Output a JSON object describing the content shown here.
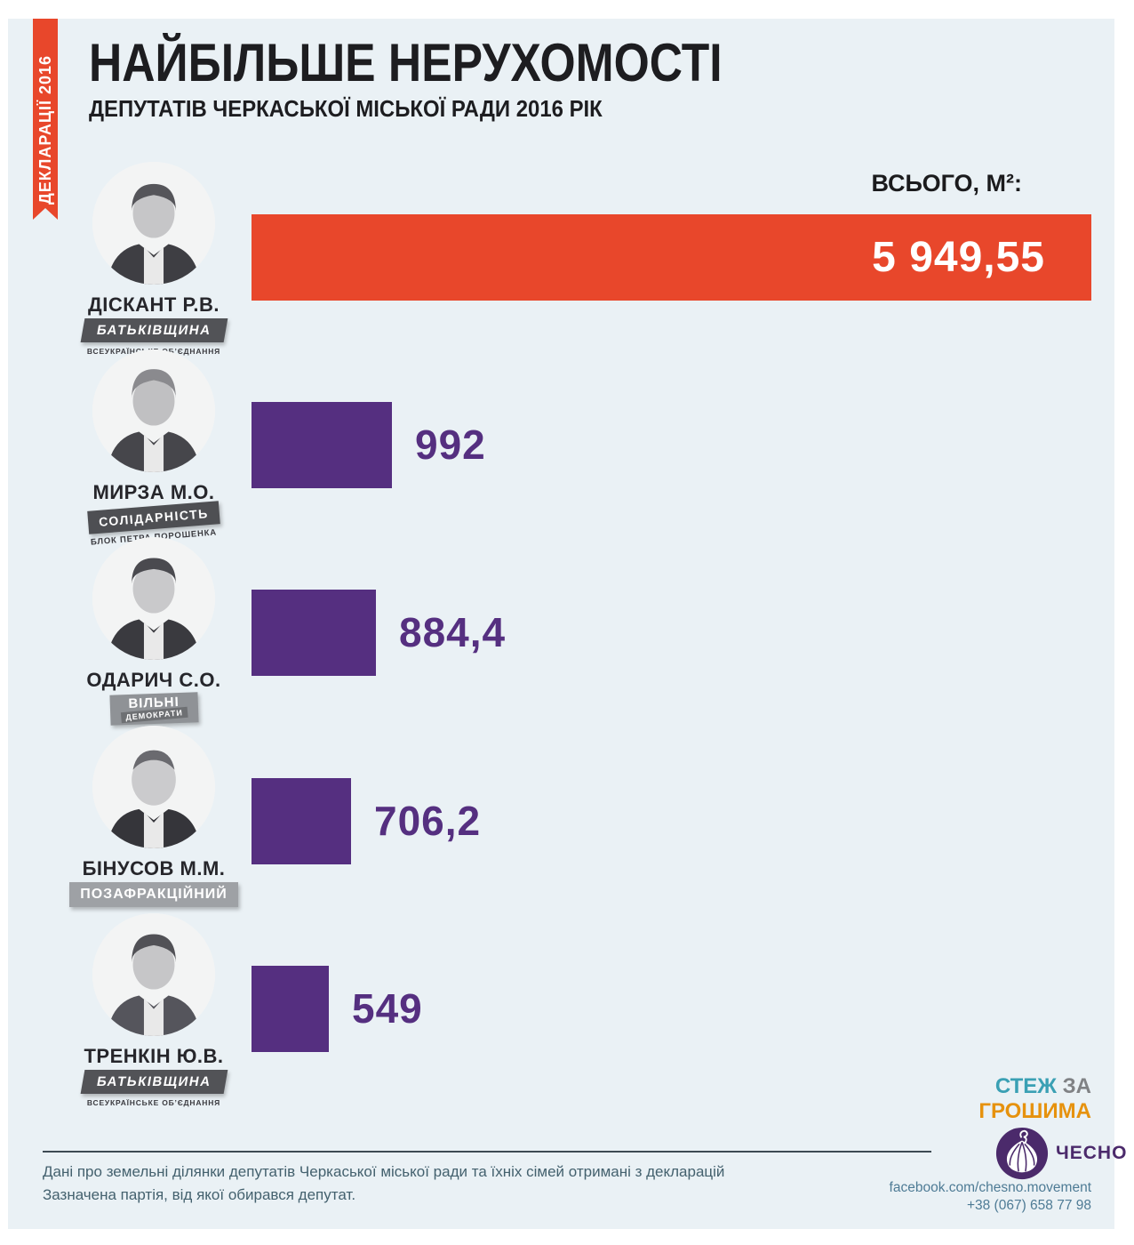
{
  "ribbon": {
    "label": "ДЕКЛАРАЦІЇ 2016"
  },
  "header": {
    "title": "НАЙБІЛЬШЕ НЕРУХОМОСТІ",
    "subtitle": "ДЕПУТАТІВ ЧЕРКАСЬКОЇ МІСЬКОЇ РАДИ 2016 РІК"
  },
  "total_label": "ВСЬОГО, М²:",
  "chart_data": {
    "type": "bar",
    "orientation": "horizontal",
    "title": "НАЙБІЛЬШЕ НЕРУХОМОСТІ ДЕПУТАТІВ ЧЕРКАСЬКОЇ МІСЬКОЇ РАДИ 2016 РІК",
    "xlabel": "ВСЬОГО, М²",
    "xlim": [
      0,
      5949.55
    ],
    "grid": false,
    "legend": false,
    "categories": [
      "ДІСКАНТ Р.В.",
      "МИРЗА М.О.",
      "ОДАРИЧ С.О.",
      "БІНУСОВ М.М.",
      "ТРЕНКІН Ю.В."
    ],
    "values": [
      5949.55,
      992,
      884.4,
      706.2,
      549
    ],
    "value_labels": [
      "5 949,55",
      "992",
      "884,4",
      "706,2",
      "549"
    ],
    "colors": [
      "#e8472b",
      "#552f80",
      "#552f80",
      "#552f80",
      "#552f80"
    ]
  },
  "rows": [
    {
      "name": "ДІСКАНТ Р.В.",
      "party": "БАТЬКІВЩИНА",
      "party_sub": "ВСЕУКРАЇНСЬКЕ ОБ’ЄДНАННЯ",
      "value_label": "5 949,55"
    },
    {
      "name": "МИРЗА М.О.",
      "party": "СОЛІДАРНІСТЬ",
      "party_sub": "БЛОК ПЕТРА ПОРОШЕНКА",
      "value_label": "992"
    },
    {
      "name": "ОДАРИЧ С.О.",
      "party": "ВІЛЬНІ",
      "party_sub": "ДЕМОКРАТИ",
      "value_label": "884,4"
    },
    {
      "name": "БІНУСОВ М.М.",
      "party": "ПОЗАФРАКЦІЙНИЙ",
      "party_sub": "",
      "value_label": "706,2"
    },
    {
      "name": "ТРЕНКІН Ю.В.",
      "party": "БАТЬКІВЩИНА",
      "party_sub": "ВСЕУКРАЇНСЬКЕ ОБ’ЄДНАННЯ",
      "value_label": "549"
    }
  ],
  "footer": {
    "line1": "Дані про земельні ділянки депутатів Черкаської міської ради та їхніх сімей отримані з декларацій",
    "line2": "Зазначена партія, від якої обирався депутат."
  },
  "branding": {
    "stezh": "СТЕЖ",
    "za": " ЗА",
    "groshyma": "ГРОШИМА",
    "chesno_label": "ЧЕСНО",
    "facebook": "facebook.com/chesno.movement",
    "phone": "+38 (067) 658 77 98",
    "colors": {
      "stezh": "#3aa0b4",
      "za": "#808285",
      "groshyma": "#e6920e",
      "chesno": "#4b2a6b",
      "contacts": "#4e7b95"
    }
  },
  "colors": {
    "accent_red": "#e8472b",
    "accent_purple": "#552f80",
    "panel_bg": "#eaf1f5",
    "badge_dark": "#525357",
    "badge_gray": "#9ea1a5"
  }
}
